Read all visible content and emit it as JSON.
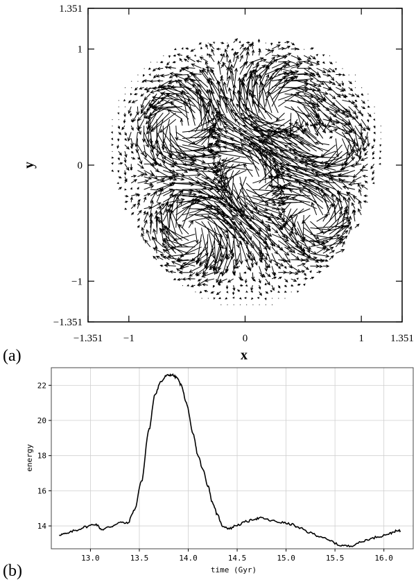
{
  "chart_data": [
    {
      "type": "vector_field",
      "panel_label": "(a)",
      "xlabel": "x",
      "ylabel": "y",
      "xlim": [
        -1.351,
        1.351
      ],
      "ylim": [
        -1.351,
        1.351
      ],
      "x_tick_labels": [
        "-1.351",
        "-1",
        "0",
        "1",
        "1.351"
      ],
      "x_tick_values": [
        -1.351,
        -1,
        0,
        1,
        1.351
      ],
      "y_tick_labels": [
        "-1.351",
        "-1",
        "0",
        "1",
        "1.351"
      ],
      "y_tick_values": [
        -1.351,
        -1,
        0,
        1,
        1.351
      ],
      "field": {
        "domain_radius": 1.2,
        "grid_step": 0.055,
        "description_values": {
          "vortices": [
            {
              "x": -0.55,
              "y": 0.35,
              "strength": 0.09,
              "sense": 1
            },
            {
              "x": 0.3,
              "y": 0.45,
              "strength": 0.1,
              "sense": -1
            },
            {
              "x": 0.05,
              "y": -0.1,
              "strength": 0.1,
              "sense": 1
            },
            {
              "x": -0.45,
              "y": -0.55,
              "strength": 0.09,
              "sense": -1
            },
            {
              "x": 0.6,
              "y": -0.45,
              "strength": 0.08,
              "sense": 1
            },
            {
              "x": 0.75,
              "y": 0.2,
              "strength": 0.07,
              "sense": -1
            }
          ]
        }
      }
    },
    {
      "type": "line",
      "panel_label": "(b)",
      "xlabel": "time (Gyr)",
      "ylabel": "energy",
      "xlim": [
        12.6,
        16.3
      ],
      "ylim": [
        12.7,
        23.0
      ],
      "grid": true,
      "x_tick_labels": [
        "13.0",
        "13.5",
        "14.0",
        "14.5",
        "15.0",
        "15.5",
        "16.0"
      ],
      "x_tick_values": [
        13.0,
        13.5,
        14.0,
        14.5,
        15.0,
        15.5,
        16.0
      ],
      "y_tick_labels": [
        "14",
        "16",
        "18",
        "20",
        "22"
      ],
      "y_tick_values": [
        14,
        16,
        18,
        20,
        22
      ],
      "series": [
        {
          "x": [
            12.68,
            12.75,
            12.85,
            12.95,
            13.05,
            13.12,
            13.2,
            13.3,
            13.38,
            13.45,
            13.52,
            13.6,
            13.66,
            13.72,
            13.78,
            13.83,
            13.88,
            13.93,
            13.98,
            14.05,
            14.1,
            14.15,
            14.2,
            14.25,
            14.3,
            14.35,
            14.42,
            14.5,
            14.6,
            14.68,
            14.75,
            14.85,
            14.95,
            15.05,
            15.15,
            15.25,
            15.35,
            15.45,
            15.55,
            15.65,
            15.75,
            15.85,
            15.95,
            16.05,
            16.12,
            16.17
          ],
          "y": [
            13.5,
            13.55,
            13.75,
            13.95,
            14.1,
            13.8,
            13.95,
            14.2,
            14.15,
            14.9,
            16.5,
            19.5,
            21.5,
            22.2,
            22.55,
            22.6,
            22.45,
            22.0,
            21.0,
            19.2,
            18.0,
            17.2,
            16.3,
            15.3,
            14.6,
            14.0,
            13.85,
            14.05,
            14.25,
            14.4,
            14.45,
            14.3,
            14.2,
            14.1,
            13.85,
            13.6,
            13.4,
            13.15,
            12.9,
            12.85,
            13.05,
            13.25,
            13.4,
            13.55,
            13.7,
            13.72
          ]
        }
      ]
    }
  ]
}
